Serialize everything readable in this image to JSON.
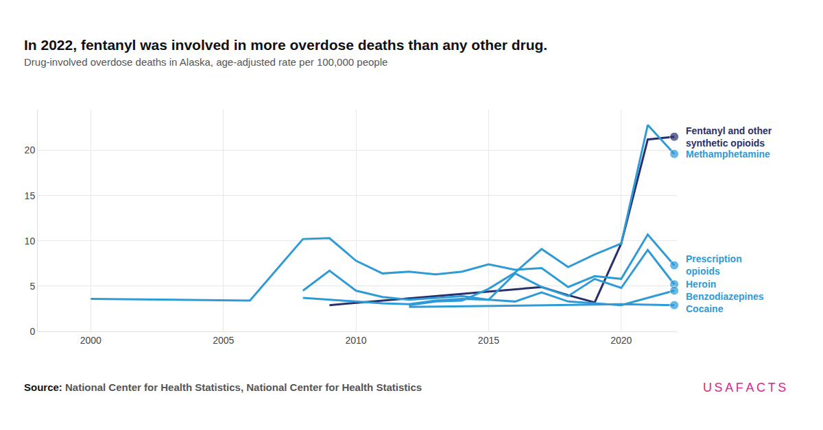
{
  "chart_data": {
    "type": "line",
    "title": "In 2022, fentanyl was involved in more overdose deaths than any other drug.",
    "subtitle": "Drug-involved overdose deaths in Alaska, age-adjusted rate per 100,000 people",
    "source": "Source: National Center for Health Statistics, National Center for Health Statistics",
    "logo": "USAFACTS",
    "xlim": [
      1998,
      2022.1
    ],
    "xticks": [
      2000,
      2005,
      2010,
      2015,
      2020
    ],
    "ylim": [
      0,
      24.5
    ],
    "yticks": [
      0,
      5,
      10,
      15,
      20
    ],
    "grid": true,
    "series": [
      {
        "name": "Fentanyl and other synthetic opioids",
        "color": "#27306b",
        "x": [
          2009,
          2017,
          2018,
          2019,
          2020,
          2021,
          2022
        ],
        "values": [
          2.9,
          4.9,
          4.0,
          3.2,
          9.7,
          21.2,
          21.5
        ]
      },
      {
        "name": "Methamphetamine",
        "color": "#2e9ad6",
        "x": [
          2012,
          2013,
          2014,
          2015,
          2016,
          2017,
          2018,
          2019,
          2020,
          2021,
          2022
        ],
        "values": [
          2.9,
          3.3,
          3.4,
          4.7,
          6.5,
          9.1,
          7.1,
          8.5,
          9.7,
          22.8,
          19.6
        ]
      },
      {
        "name": "Prescription opioids",
        "color": "#2e9ad6",
        "x": [
          2000,
          2006,
          2008,
          2009,
          2010,
          2011,
          2012,
          2013,
          2014,
          2015,
          2016,
          2017,
          2018,
          2019,
          2020,
          2021,
          2022
        ],
        "values": [
          3.6,
          3.4,
          10.2,
          10.3,
          7.8,
          6.4,
          6.6,
          6.3,
          6.6,
          7.4,
          6.8,
          7.0,
          4.9,
          6.1,
          5.8,
          10.7,
          7.3
        ]
      },
      {
        "name": "Heroin",
        "color": "#2e9ad6",
        "x": [
          2008,
          2009,
          2010,
          2011,
          2012,
          2013,
          2014,
          2015,
          2016,
          2017,
          2018,
          2019,
          2020,
          2021,
          2022
        ],
        "values": [
          4.5,
          6.7,
          4.5,
          3.8,
          3.5,
          3.7,
          3.9,
          3.5,
          6.4,
          4.9,
          3.9,
          5.8,
          4.8,
          9.0,
          5.2
        ]
      },
      {
        "name": "Benzodiazepines",
        "color": "#2e9ad6",
        "x": [
          2008,
          2009,
          2010,
          2011,
          2012,
          2013,
          2014,
          2015,
          2016,
          2017,
          2018,
          2019,
          2020,
          2021,
          2022
        ],
        "values": [
          3.7,
          3.5,
          3.3,
          3.1,
          3.0,
          3.4,
          3.6,
          3.5,
          3.3,
          4.3,
          3.3,
          3.1,
          2.9,
          3.7,
          4.5
        ]
      },
      {
        "name": "Cocaine",
        "color": "#2e9ad6",
        "x": [
          2012,
          2020,
          2022
        ],
        "values": [
          2.7,
          3.0,
          2.9
        ]
      }
    ]
  }
}
